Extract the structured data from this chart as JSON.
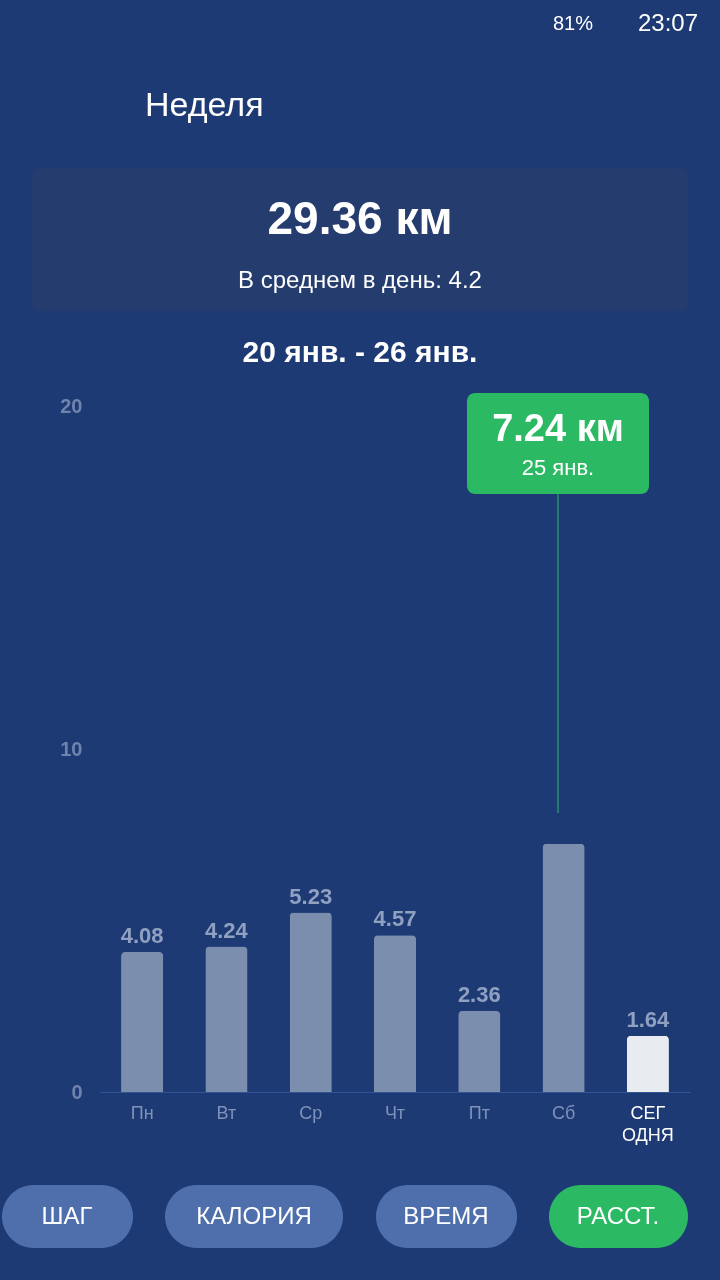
{
  "chart_data": {
    "type": "bar",
    "title": "Неделя",
    "subtitle": "29.36 км",
    "categories": [
      "Пн",
      "Вт",
      "Ср",
      "Чт",
      "Пт",
      "Сб",
      "СЕГ\nОДНЯ"
    ],
    "values": [
      4.08,
      4.24,
      5.23,
      4.57,
      2.36,
      7.24,
      1.64
    ],
    "colors": [
      "#7b8eae",
      "#7b8eae",
      "#7b8eae",
      "#7b8eae",
      "#7b8eae",
      "#7b8eae",
      "#e8ebf0"
    ],
    "value_labels": [
      "4.08",
      "4.24",
      "5.23",
      "4.57",
      "2.36",
      null,
      "1.64"
    ],
    "ylim": [
      0,
      20
    ],
    "yticks": [
      0,
      10,
      20
    ],
    "grid": false,
    "annotations": [
      "В среднем в день:  4.2",
      "20 янв. - 26 янв.",
      "7.24 км",
      "25 янв.",
      "ШАГ",
      "КАЛОРИЯ",
      "ВРЕМЯ",
      "РАССТ.",
      "81%",
      "23:07"
    ]
  }
}
